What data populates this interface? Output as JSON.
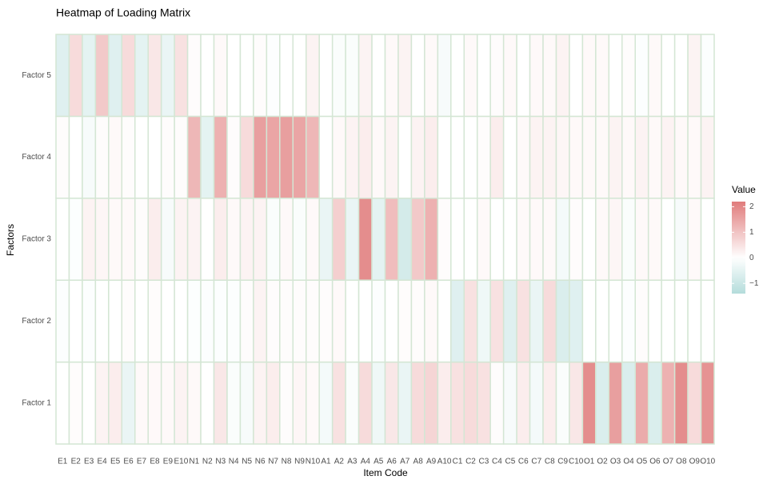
{
  "chart_data": {
    "type": "heatmap",
    "title": "Heatmap of Loading Matrix",
    "x_label": "Item Code",
    "y_label": "Factors",
    "categories": [
      "E1",
      "E2",
      "E3",
      "E4",
      "E5",
      "E6",
      "E7",
      "E8",
      "E9",
      "E10",
      "N1",
      "N2",
      "N3",
      "N4",
      "N5",
      "N6",
      "N7",
      "N8",
      "N9",
      "N10",
      "A1",
      "A2",
      "A3",
      "A4",
      "A5",
      "A6",
      "A7",
      "A8",
      "A9",
      "A10",
      "C1",
      "C2",
      "C3",
      "C4",
      "C5",
      "C6",
      "C7",
      "C8",
      "C9",
      "C10",
      "O1",
      "O2",
      "O3",
      "O4",
      "O5",
      "O6",
      "O7",
      "O8",
      "O9",
      "O10"
    ],
    "y_categories": [
      "Factor 1",
      "Factor 2",
      "Factor 3",
      "Factor 4",
      "Factor 5"
    ],
    "values": [
      [
        0.0,
        0.05,
        0.0,
        0.2,
        0.3,
        -0.4,
        0.1,
        0.1,
        0.1,
        0.2,
        0.1,
        0.0,
        0.4,
        -0.1,
        -0.15,
        0.2,
        0.3,
        0.05,
        0.15,
        0.1,
        -0.2,
        0.5,
        -0.1,
        0.6,
        -0.3,
        0.4,
        -0.4,
        0.6,
        0.7,
        0.3,
        0.5,
        0.6,
        0.5,
        0.05,
        -0.15,
        0.3,
        -0.2,
        0.3,
        -0.1,
        0.4,
        1.9,
        -0.7,
        1.6,
        -0.7,
        1.4,
        -0.7,
        1.3,
        1.9,
        0.6,
        1.8
      ],
      [
        -0.05,
        0.0,
        -0.05,
        0.0,
        0.0,
        0.05,
        0.0,
        0.05,
        0.0,
        0.0,
        -0.05,
        -0.05,
        -0.05,
        -0.05,
        0.05,
        0.2,
        0.05,
        0.05,
        0.05,
        0.05,
        0.05,
        0.1,
        0.0,
        0.0,
        -0.05,
        0.0,
        0.05,
        0.05,
        0.1,
        0.0,
        -0.6,
        0.5,
        -0.3,
        0.5,
        -0.6,
        0.5,
        -0.4,
        0.6,
        -0.7,
        -0.6,
        0.0,
        0.0,
        0.0,
        -0.05,
        0.05,
        0.0,
        0.0,
        0.0,
        0.0,
        0.0
      ],
      [
        0.0,
        -0.05,
        0.2,
        0.15,
        0.1,
        0.1,
        0.05,
        0.3,
        -0.15,
        0.2,
        0.2,
        0.0,
        0.3,
        0.1,
        0.2,
        0.2,
        -0.1,
        0.1,
        -0.1,
        0.1,
        -0.4,
        0.8,
        -0.4,
        1.9,
        -0.5,
        1.1,
        -0.8,
        0.9,
        1.3,
        0.05,
        0.0,
        0.0,
        0.1,
        0.0,
        0.0,
        0.1,
        0.1,
        0.1,
        -0.2,
        0.05,
        0.0,
        0.1,
        0.15,
        -0.1,
        0.1,
        0.1,
        0.0,
        -0.15,
        0.1,
        0.0
      ],
      [
        0.05,
        0.0,
        -0.15,
        0.05,
        0.1,
        0.05,
        0.0,
        0.0,
        0.05,
        0.05,
        1.2,
        -0.5,
        1.3,
        0.05,
        0.6,
        1.6,
        1.5,
        1.6,
        1.5,
        1.2,
        0.0,
        0.1,
        0.2,
        0.3,
        0.1,
        0.2,
        0.0,
        0.2,
        0.3,
        0.0,
        0.0,
        0.0,
        0.05,
        0.3,
        0.0,
        0.1,
        0.2,
        0.2,
        0.15,
        0.1,
        0.1,
        0.1,
        0.2,
        0.1,
        0.2,
        0.1,
        0.2,
        0.1,
        0.1,
        0.2
      ],
      [
        -0.6,
        0.6,
        -0.5,
        0.9,
        -0.6,
        0.6,
        -0.5,
        0.4,
        -0.4,
        0.5,
        0.05,
        0.0,
        0.1,
        0.0,
        0.0,
        0.05,
        -0.05,
        0.0,
        0.0,
        0.2,
        0.0,
        -0.1,
        -0.1,
        0.2,
        0.0,
        0.1,
        0.2,
        0.0,
        0.1,
        -0.15,
        0.0,
        0.1,
        0.0,
        0.05,
        0.1,
        0.0,
        0.1,
        0.1,
        0.2,
        0.0,
        0.1,
        0.1,
        0.0,
        0.05,
        -0.05,
        0.1,
        0.0,
        0.0,
        0.2,
        -0.05
      ]
    ],
    "colors": {
      "low": "#b4dcdb",
      "mid": "#ffffff",
      "high": "#e07b7b",
      "border": "#d4e6d4"
    },
    "colorbar": {
      "title": "Value",
      "lim": [
        -1.4,
        2.2
      ],
      "ticks": [
        2,
        1,
        0,
        {
          "value": -1,
          "label": "−1"
        }
      ]
    }
  }
}
